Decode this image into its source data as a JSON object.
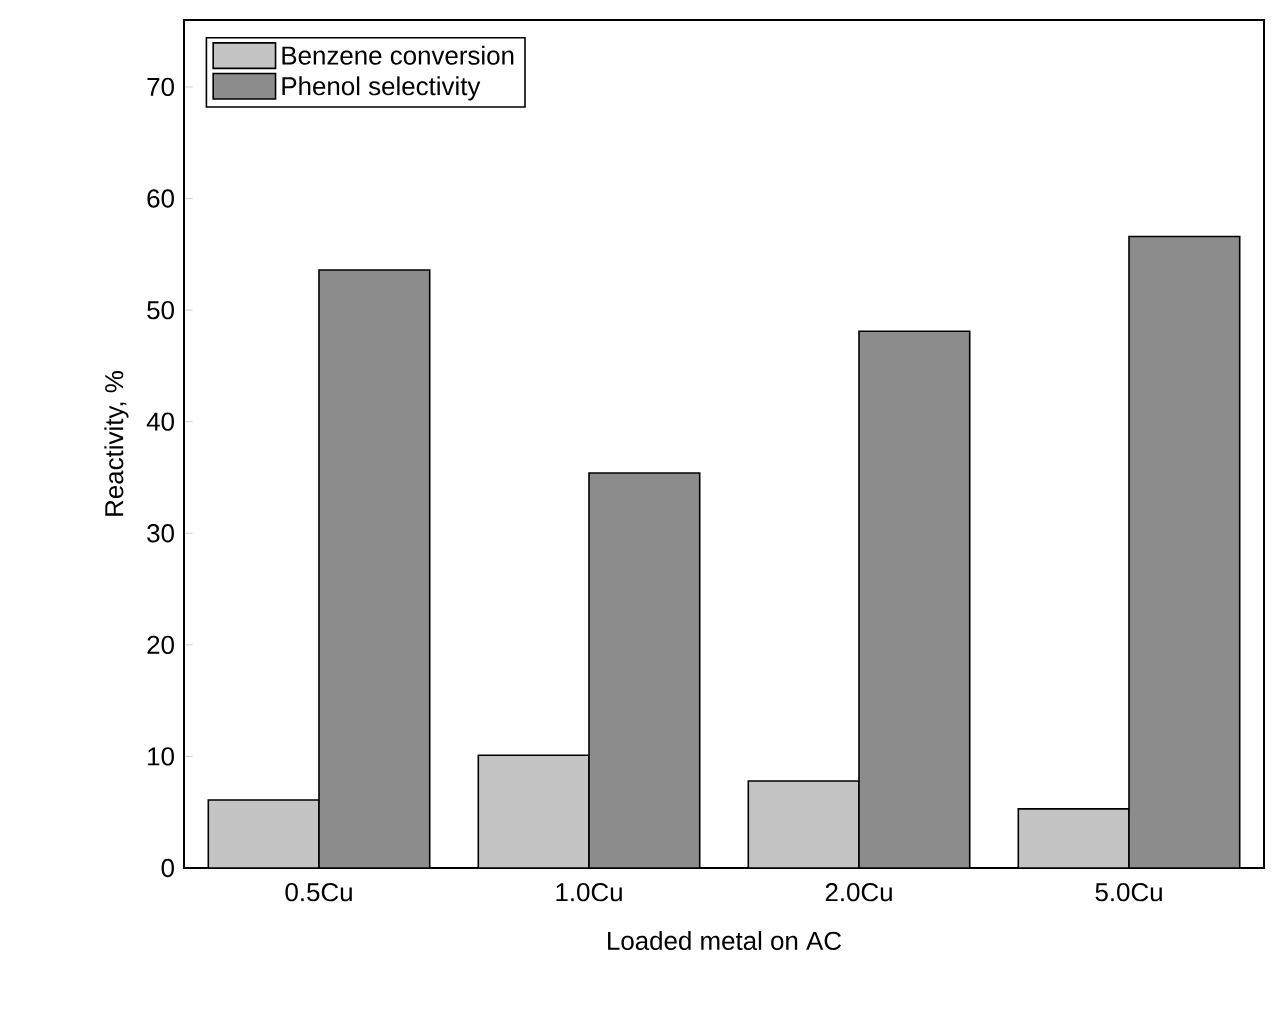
{
  "chart_data": {
    "type": "bar",
    "xlabel": "Loaded metal on AC",
    "ylabel": "Reactivity, %",
    "categories": [
      "0.5Cu",
      "1.0Cu",
      "2.0Cu",
      "5.0Cu"
    ],
    "series": [
      {
        "name": "Benzene conversion",
        "color": "#c4c4c4",
        "values": [
          6.1,
          10.1,
          7.8,
          5.3
        ]
      },
      {
        "name": "Phenol selectivity",
        "color": "#8c8c8c",
        "values": [
          53.6,
          35.4,
          48.1,
          56.6
        ]
      }
    ],
    "ylim": [
      0,
      76
    ],
    "yticks": [
      0,
      10,
      20,
      30,
      40,
      50,
      60,
      70
    ],
    "grid": false,
    "legend": "top left"
  }
}
